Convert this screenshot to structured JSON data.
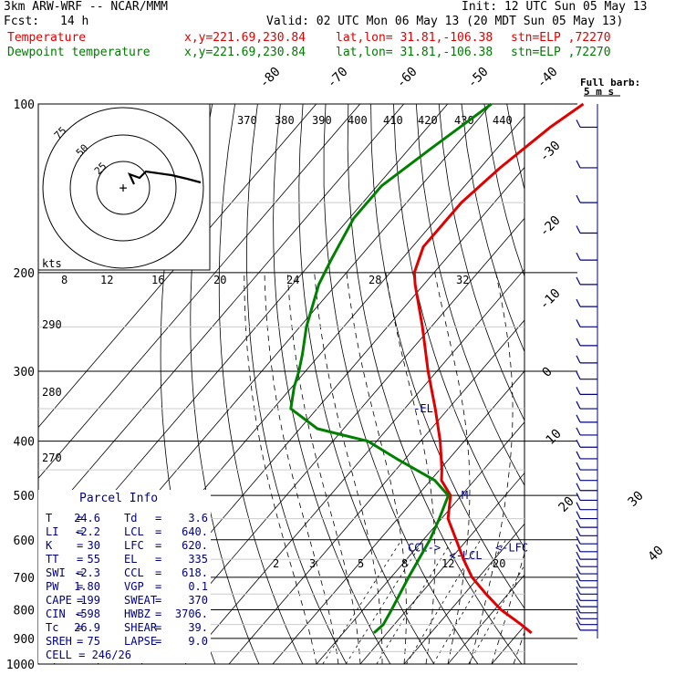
{
  "header": {
    "model": "3km ARW-WRF -- NCAR/MMM",
    "init": "Init: 12 UTC Sun 05 May 13",
    "fcst_label": "Fcst:",
    "fcst_value": "14 h",
    "valid": "Valid: 02 UTC Mon 06 May 13 (20 MDT Sun 05 May 13)",
    "temp_label": "Temperature",
    "dew_label": "Dewpoint temperature",
    "xy": "x,y=221.69,230.84",
    "latlon": "lat,lon= 31.81,-106.38",
    "stn": "stn=ELP ,72270"
  },
  "colors": {
    "temperature": "#e00000",
    "dewpoint": "#008000",
    "barb": "#000080",
    "isobar": "#000000"
  },
  "chart_data": {
    "type": "line",
    "title": "Skew-T log-P sounding",
    "y_axis": "pressure (hPa)",
    "pressure_labels": [
      "100",
      "200",
      "300",
      "400",
      "500",
      "600",
      "700",
      "800",
      "900",
      "1000"
    ],
    "isotherm_labels": [
      "-80",
      "-70",
      "-60",
      "-50",
      "-40",
      "-30",
      "-20",
      "-10",
      "0",
      "10",
      "20",
      "30",
      "40"
    ],
    "theta_labels": [
      "370",
      "380",
      "390",
      "400",
      "410",
      "420",
      "430",
      "440"
    ],
    "theta_left_labels": [
      "290",
      "280",
      "270"
    ],
    "mixing_ratio_labels": [
      "2",
      "3",
      "5",
      "8",
      "12",
      "20"
    ],
    "hodograph_axis_labels": [
      "8",
      "12",
      "16",
      "20",
      "24",
      "28",
      "32"
    ],
    "hodograph_ring_labels": [
      "75",
      "50",
      "25"
    ],
    "hodograph_unit": "kts",
    "barb_key": "Full barb:",
    "barb_key2": "5 m s",
    "series": [
      {
        "name": "Temperature",
        "points": [
          [
            1000,
            null
          ],
          [
            880,
            33.0
          ],
          [
            850,
            29.0
          ],
          [
            800,
            21.5
          ],
          [
            750,
            15.0
          ],
          [
            700,
            8.5
          ],
          [
            650,
            3.0
          ],
          [
            600,
            -2.5
          ],
          [
            550,
            -8.5
          ],
          [
            500,
            -12.5
          ],
          [
            470,
            -17.5
          ],
          [
            450,
            -19.5
          ],
          [
            400,
            -25.5
          ],
          [
            350,
            -33.0
          ],
          [
            300,
            -42.0
          ],
          [
            250,
            -52.0
          ],
          [
            210,
            -62.0
          ],
          [
            200,
            -64.5
          ],
          [
            180,
            -67.5
          ],
          [
            150,
            -67.5
          ],
          [
            130,
            -65.5
          ],
          [
            110,
            -62.0
          ],
          [
            100,
            -59.0
          ]
        ]
      },
      {
        "name": "Dewpoint temperature",
        "points": [
          [
            880,
            -3.0
          ],
          [
            850,
            -2.5
          ],
          [
            800,
            -3.5
          ],
          [
            700,
            -6.0
          ],
          [
            600,
            -8.5
          ],
          [
            550,
            -10.5
          ],
          [
            500,
            -13.0
          ],
          [
            470,
            -19.0
          ],
          [
            430,
            -32.0
          ],
          [
            400,
            -42.0
          ],
          [
            380,
            -56.0
          ],
          [
            350,
            -66.0
          ],
          [
            320,
            -69.5
          ],
          [
            300,
            -71.5
          ],
          [
            280,
            -74.0
          ],
          [
            250,
            -78.5
          ],
          [
            210,
            -84.0
          ],
          [
            190,
            -86.0
          ],
          [
            160,
            -89.0
          ],
          [
            140,
            -89.0
          ],
          [
            120,
            -85.0
          ],
          [
            100,
            -80.0
          ]
        ]
      }
    ],
    "levels": [
      {
        "label": "-EL",
        "p": 350,
        "t": -38
      },
      {
        "label": "M",
        "p": 500,
        "t": -10
      },
      {
        "label": "CCL->",
        "p": 620,
        "t": -12
      },
      {
        "label": "<-LCL",
        "p": 640,
        "t": -1
      },
      {
        "label": "<-LFC",
        "p": 620,
        "t": 8
      }
    ]
  },
  "parcel": {
    "title": "Parcel Info",
    "rows": [
      {
        "k1": "T",
        "v1": "24.6",
        "k2": "Td",
        "v2": "3.6"
      },
      {
        "k1": "LI",
        "v1": "-2.2",
        "k2": "LCL",
        "v2": "640."
      },
      {
        "k1": "K",
        "v1": "30",
        "k2": "LFC",
        "v2": "620."
      },
      {
        "k1": "TT",
        "v1": "55",
        "k2": "EL",
        "v2": "335"
      },
      {
        "k1": "SWI",
        "v1": "-2.3",
        "k2": "CCL",
        "v2": "618."
      },
      {
        "k1": "PW",
        "v1": "1.80",
        "k2": "VGP",
        "v2": "0.1"
      },
      {
        "k1": "CAPE",
        "v1": "199",
        "k2": "SWEAT",
        "v2": "370"
      },
      {
        "k1": "CIN",
        "v1": "-598",
        "k2": "HWBZ",
        "v2": "3706."
      },
      {
        "k1": "Tc",
        "v1": "26.9",
        "k2": "SHEAR",
        "v2": "39."
      },
      {
        "k1": "SREH",
        "v1": "75",
        "k2": "LAPSE",
        "v2": "9.0"
      }
    ],
    "cell": "CELL = 246/26"
  }
}
